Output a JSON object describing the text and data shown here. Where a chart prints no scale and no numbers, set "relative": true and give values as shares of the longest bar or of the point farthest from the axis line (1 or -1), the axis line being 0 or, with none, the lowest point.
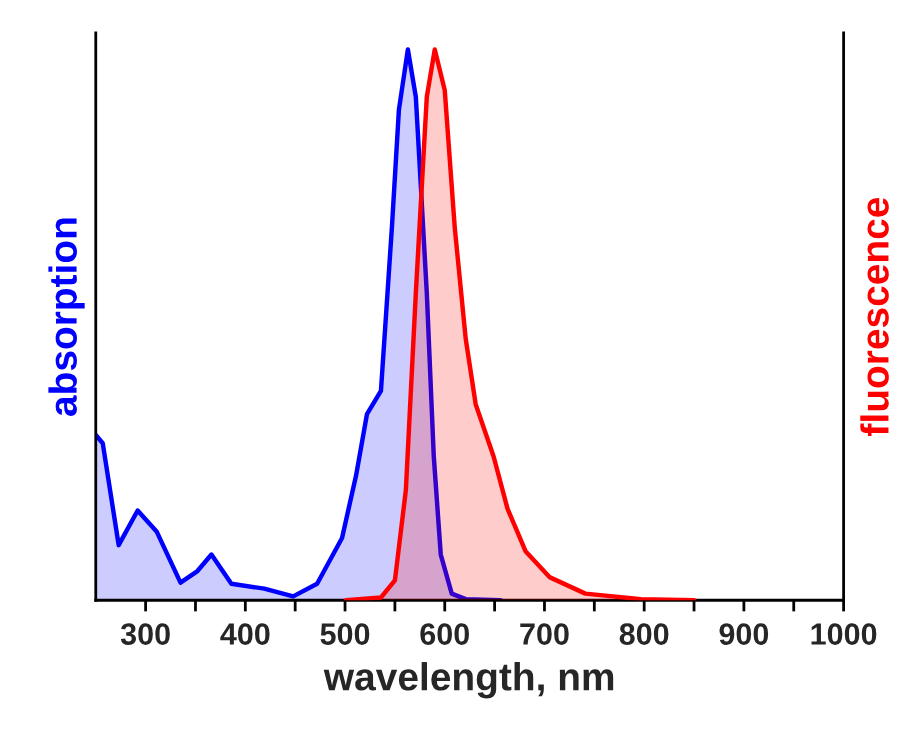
{
  "chart_data": {
    "type": "area",
    "relative": true,
    "xlabel": "wavelength, nm",
    "ylabel": "absorption",
    "y2label": "fluorescence",
    "xlim": [
      250,
      1000
    ],
    "xticks": [
      300,
      {
        "value": 350,
        "label": null
      },
      400,
      {
        "value": 450,
        "label": null
      },
      500,
      {
        "value": 550,
        "label": null
      },
      600,
      {
        "value": 650,
        "label": null
      },
      700,
      {
        "value": 750,
        "label": null
      },
      800,
      {
        "value": 850,
        "label": null
      },
      900,
      {
        "value": 950,
        "label": null
      },
      1000
    ],
    "grid": false,
    "legend": false,
    "series": [
      {
        "color": "#0000ff",
        "x": [
          250,
          257,
          273,
          292,
          311,
          335,
          352,
          366,
          386,
          419,
          448,
          472,
          497,
          511,
          522,
          536,
          547,
          554,
          563,
          571,
          582,
          589,
          596,
          607,
          621,
          656
        ],
        "values": [
          0.3,
          0.285,
          0.1,
          0.163,
          0.125,
          0.032,
          0.053,
          0.083,
          0.03,
          0.021,
          0.007,
          0.03,
          0.113,
          0.226,
          0.338,
          0.38,
          0.677,
          0.89,
          1.0,
          0.914,
          0.558,
          0.261,
          0.083,
          0.012,
          0.002,
          0
        ]
      },
      {
        "color": "#ff0000",
        "axis": "y2",
        "x": [
          501,
          536,
          550,
          561,
          571,
          582,
          590,
          600,
          610,
          621,
          631,
          649,
          663,
          681,
          705,
          741,
          797,
          850
        ],
        "values": [
          0,
          0.005,
          0.036,
          0.2,
          0.558,
          0.914,
          1.0,
          0.926,
          0.677,
          0.475,
          0.356,
          0.261,
          0.166,
          0.089,
          0.042,
          0.012,
          0.002,
          0
        ]
      }
    ]
  }
}
